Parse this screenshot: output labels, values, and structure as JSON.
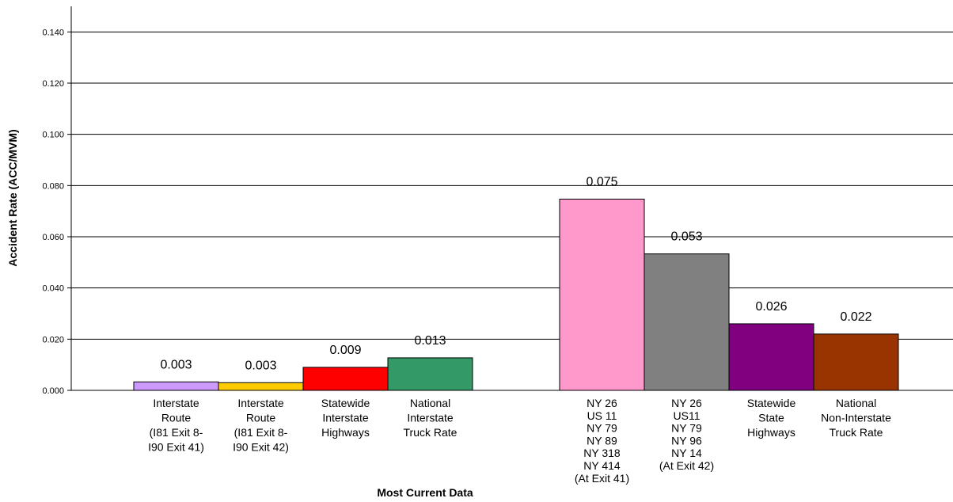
{
  "chart_data": {
    "type": "bar",
    "title": "",
    "xlabel": "Most Current Data",
    "ylabel": "Accident Rate (ACC/MVM)",
    "ylim": [
      0,
      0.15
    ],
    "yticks": [
      "0.000",
      "0.020",
      "0.040",
      "0.060",
      "0.080",
      "0.100",
      "0.120",
      "0.140"
    ],
    "grid": true,
    "legend": "none",
    "bars": [
      {
        "category": [
          "Interstate",
          "Route",
          "(I81 Exit 8-",
          "I90 Exit 41)"
        ],
        "value": 0.0033,
        "label": "0.003",
        "color": "#cc99ff"
      },
      {
        "category": [
          "Interstate",
          "Route",
          "(I81 Exit 8-",
          "I90 Exit 42)"
        ],
        "value": 0.003,
        "label": "0.003",
        "color": "#ffcc00"
      },
      {
        "category": [
          "Statewide",
          "Interstate",
          "Highways"
        ],
        "value": 0.009,
        "label": "0.009",
        "color": "#ff0000"
      },
      {
        "category": [
          "National",
          "Interstate",
          "Truck Rate"
        ],
        "value": 0.0127,
        "label": "0.013",
        "color": "#339966"
      },
      {
        "category": [
          "NY 26",
          "US 11",
          "NY 79",
          "NY 89",
          "NY 318",
          "NY 414",
          "(At Exit 41)"
        ],
        "value": 0.0747,
        "label": "0.075",
        "color": "#ff99cc"
      },
      {
        "category": [
          "NY 26",
          "US11",
          "NY 79",
          "NY 96",
          "NY 14",
          "(At Exit 42)"
        ],
        "value": 0.0533,
        "label": "0.053",
        "color": "#808080"
      },
      {
        "category": [
          "Statewide",
          "State",
          "Highways"
        ],
        "value": 0.026,
        "label": "0.026",
        "color": "#800080"
      },
      {
        "category": [
          "National",
          "Non-Interstate",
          "Truck Rate"
        ],
        "value": 0.022,
        "label": "0.022",
        "color": "#993300"
      }
    ]
  }
}
